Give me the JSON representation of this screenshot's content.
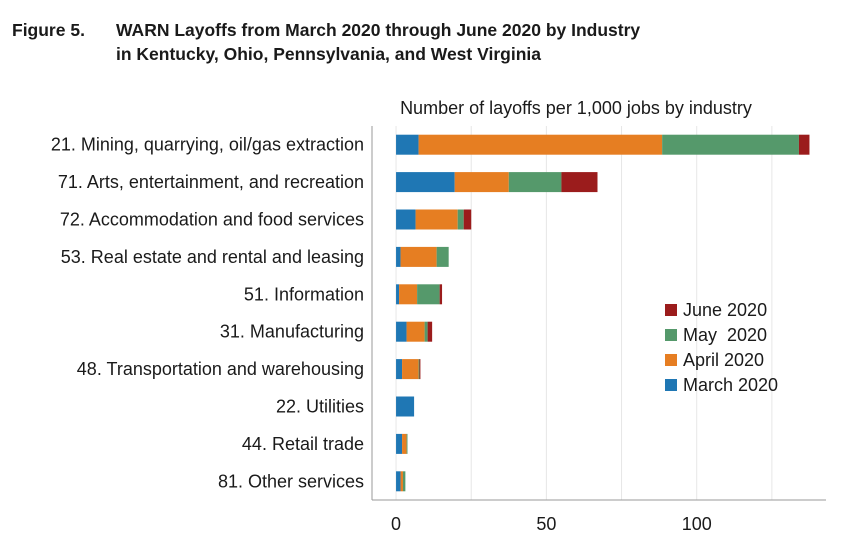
{
  "figure": {
    "number": "Figure 5.",
    "title_line1": "WARN Layoffs from March 2020 through June 2020 by Industry",
    "title_line2": "in Kentucky, Ohio, Pennsylvania, and West Virginia"
  },
  "chart_data": {
    "type": "bar",
    "orientation": "horizontal",
    "stacked": true,
    "title": "Number of layoffs per 1,000 jobs by industry",
    "xlim": [
      -8,
      143
    ],
    "xticks": [
      0,
      50,
      100
    ],
    "grid": true,
    "legend_position": "right",
    "categories": [
      "21. Mining, quarrying, oil/gas extraction",
      "71. Arts, entertainment, and recreation",
      "72. Accommodation and food services",
      "53. Real estate and rental and leasing",
      "51. Information",
      "31. Manufacturing",
      "48. Transportation and warehousing",
      "22. Utilities",
      "44. Retail trade",
      "81. Other services"
    ],
    "series": [
      {
        "name": "March 2020",
        "color": "#1f77b4",
        "values": [
          7.5,
          19.5,
          6.5,
          1.5,
          1.0,
          3.5,
          2.0,
          6.0,
          2.0,
          1.5
        ]
      },
      {
        "name": "April 2020",
        "color": "#e67e22",
        "values": [
          81.0,
          18.0,
          14.0,
          12.0,
          6.0,
          6.0,
          5.5,
          0.0,
          1.5,
          0.8
        ]
      },
      {
        "name": "May  2020",
        "color": "#55996b",
        "values": [
          45.5,
          17.5,
          2.0,
          4.0,
          7.5,
          1.0,
          0.3,
          0.0,
          0.3,
          0.8
        ]
      },
      {
        "name": "June 2020",
        "color": "#9b1c1c",
        "values": [
          3.5,
          12.0,
          2.5,
          0.0,
          0.8,
          1.5,
          0.3,
          0.0,
          0.0,
          0.0
        ]
      }
    ],
    "legend_order": [
      "June 2020",
      "May  2020",
      "April 2020",
      "March 2020"
    ]
  }
}
